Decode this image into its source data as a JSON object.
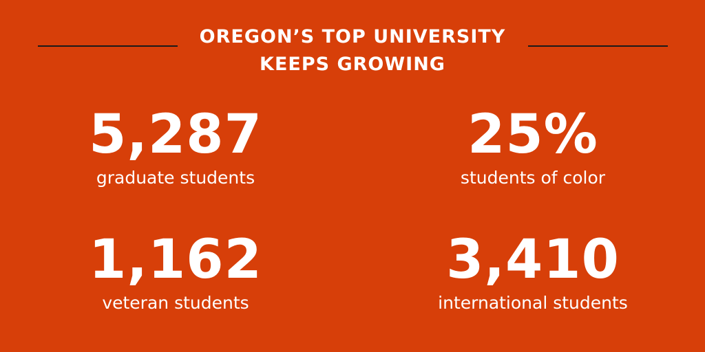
{
  "headline": {
    "line1": "OREGON’S TOP UNIVERSITY",
    "line2": "KEEPS GROWING"
  },
  "stats": [
    {
      "number": "5,287",
      "label": "graduate students"
    },
    {
      "number": "25%",
      "label": "students of color"
    },
    {
      "number": "1,162",
      "label": "veteran students"
    },
    {
      "number": "3,410",
      "label": "international students"
    }
  ],
  "colors": {
    "background": "#D73F09",
    "text": "#FFFFFF",
    "rule": "#1A1A1A"
  }
}
